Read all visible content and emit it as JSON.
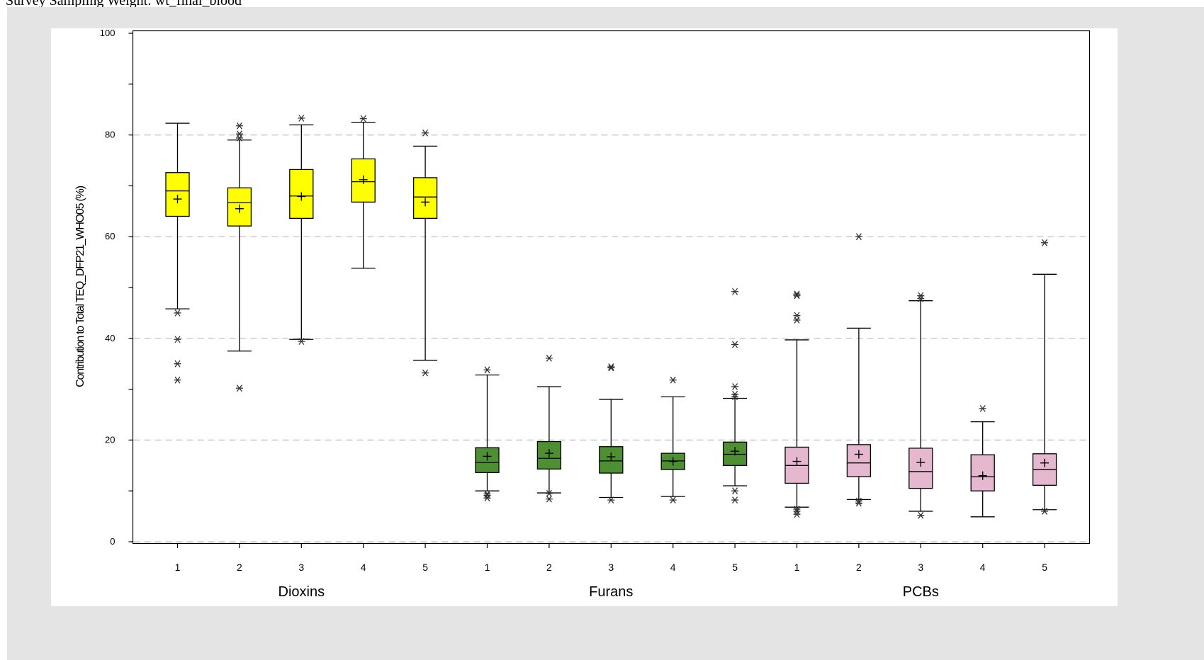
{
  "header": {
    "subtitle_text": "Survey Sampling Weight: wt_final_blood"
  },
  "chart_data": {
    "type": "box",
    "ylabel": "Contribution to Total TEQ_DFP21_WHO05 (%)",
    "ylim": [
      0,
      100
    ],
    "yticks": [
      0,
      20,
      40,
      60,
      80,
      100
    ],
    "grid": {
      "horizontal_dashed_at": [
        0,
        20,
        40,
        60,
        80
      ]
    },
    "groups": [
      {
        "name": "Dioxins",
        "color": "#ffff00",
        "boxes": [
          {
            "label": "1",
            "whisker_low": 45.8,
            "q1": 64.0,
            "median": 69.0,
            "q3": 72.6,
            "whisker_high": 82.3,
            "mean": 67.4,
            "outliers": [
              45.0,
              39.8,
              35.0,
              31.8
            ]
          },
          {
            "label": "2",
            "whisker_low": 37.5,
            "q1": 62.1,
            "median": 66.7,
            "q3": 69.6,
            "whisker_high": 79.0,
            "mean": 65.5,
            "outliers": [
              81.8,
              80.2,
              79.4,
              30.2
            ]
          },
          {
            "label": "3",
            "whisker_low": 39.8,
            "q1": 63.6,
            "median": 68.0,
            "q3": 73.2,
            "whisker_high": 82.0,
            "mean": 67.9,
            "outliers": [
              83.3,
              39.4
            ]
          },
          {
            "label": "4",
            "whisker_low": 53.8,
            "q1": 66.8,
            "median": 70.8,
            "q3": 75.3,
            "whisker_high": 82.5,
            "mean": 71.2,
            "outliers": [
              83.2
            ]
          },
          {
            "label": "5",
            "whisker_low": 35.7,
            "q1": 63.6,
            "median": 67.8,
            "q3": 71.6,
            "whisker_high": 77.8,
            "mean": 66.8,
            "outliers": [
              80.4,
              33.2
            ]
          }
        ]
      },
      {
        "name": "Furans",
        "color": "#4f8f34",
        "boxes": [
          {
            "label": "1",
            "whisker_low": 10.0,
            "q1": 13.6,
            "median": 15.6,
            "q3": 18.5,
            "whisker_high": 32.8,
            "mean": 16.8,
            "outliers": [
              33.8,
              9.4,
              9.1,
              8.6
            ]
          },
          {
            "label": "2",
            "whisker_low": 9.6,
            "q1": 14.3,
            "median": 16.4,
            "q3": 19.7,
            "whisker_high": 30.5,
            "mean": 17.4,
            "outliers": [
              36.1,
              9.5,
              8.4
            ]
          },
          {
            "label": "3",
            "whisker_low": 8.7,
            "q1": 13.5,
            "median": 15.9,
            "q3": 18.7,
            "whisker_high": 28.0,
            "mean": 16.7,
            "outliers": [
              34.2,
              34.4,
              8.2
            ]
          },
          {
            "label": "4",
            "whisker_low": 8.9,
            "q1": 14.2,
            "median": 15.9,
            "q3": 17.4,
            "whisker_high": 28.5,
            "mean": 15.8,
            "outliers": [
              31.8,
              8.2
            ]
          },
          {
            "label": "5",
            "whisker_low": 11.0,
            "q1": 15.0,
            "median": 17.2,
            "q3": 19.6,
            "whisker_high": 28.2,
            "mean": 17.8,
            "outliers": [
              49.2,
              38.8,
              30.5,
              29.0,
              28.5,
              10.0,
              8.2
            ]
          }
        ]
      },
      {
        "name": "PCBs",
        "color": "#e6b8d0",
        "boxes": [
          {
            "label": "1",
            "whisker_low": 6.8,
            "q1": 11.5,
            "median": 15.0,
            "q3": 18.6,
            "whisker_high": 39.7,
            "mean": 15.8,
            "outliers": [
              48.7,
              48.4,
              44.5,
              43.6,
              6.4,
              6.0,
              5.4
            ]
          },
          {
            "label": "2",
            "whisker_low": 8.3,
            "q1": 12.8,
            "median": 15.5,
            "q3": 19.1,
            "whisker_high": 42.0,
            "mean": 17.2,
            "outliers": [
              60.0,
              8.0,
              7.6
            ]
          },
          {
            "label": "3",
            "whisker_low": 6.0,
            "q1": 10.5,
            "median": 13.8,
            "q3": 18.4,
            "whisker_high": 47.4,
            "mean": 15.6,
            "outliers": [
              48.4,
              47.8,
              5.2
            ]
          },
          {
            "label": "4",
            "whisker_low": 4.9,
            "q1": 10.0,
            "median": 12.8,
            "q3": 17.1,
            "whisker_high": 23.6,
            "mean": 13.0,
            "outliers": [
              26.2
            ]
          },
          {
            "label": "5",
            "whisker_low": 6.3,
            "q1": 11.1,
            "median": 14.2,
            "q3": 17.3,
            "whisker_high": 52.6,
            "mean": 15.5,
            "outliers": [
              58.8,
              6.0
            ]
          }
        ]
      }
    ]
  }
}
